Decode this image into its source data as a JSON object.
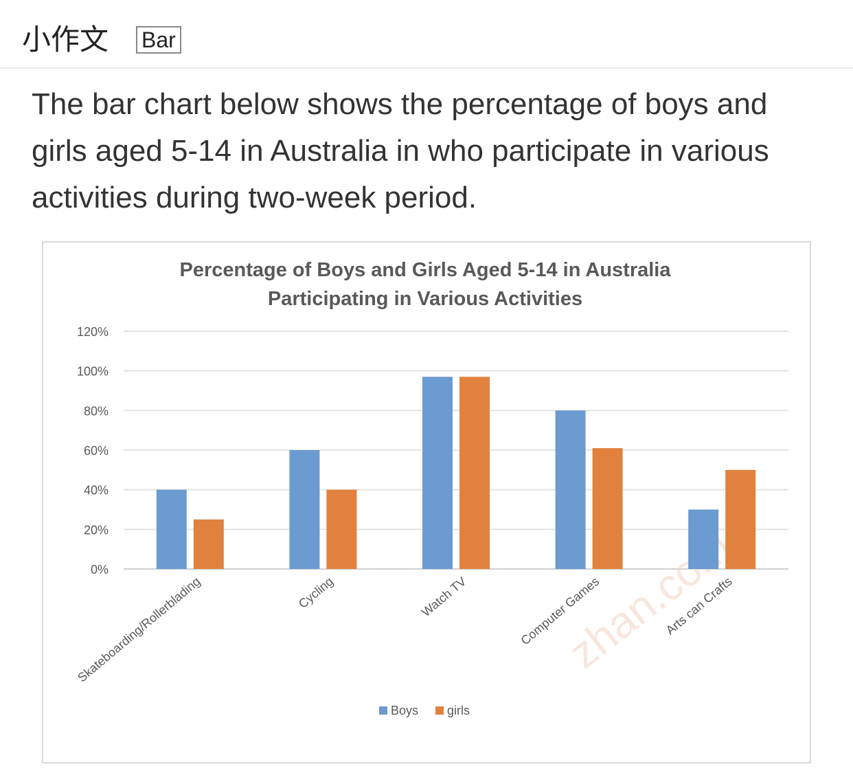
{
  "header": {
    "title": "小作文",
    "tag": "Bar"
  },
  "prompt": "The bar chart below shows the percentage of boys and girls aged 5-14 in Australia in who participate in various activities during two-week period.",
  "chart_data": {
    "type": "bar",
    "title_line1": "Percentage of Boys and Girls Aged 5-14 in Australia",
    "title_line2": "Participating in Various Activities",
    "categories": [
      "Skateboarding/Rollerblading",
      "Cycling",
      "Watch TV",
      "Computer Games",
      "Arts can Crafts"
    ],
    "series": [
      {
        "name": "Boys",
        "values": [
          40,
          60,
          97,
          80,
          30
        ],
        "color": "#6b9bd1"
      },
      {
        "name": "girls",
        "values": [
          25,
          40,
          97,
          61,
          50
        ],
        "color": "#e0823e"
      }
    ],
    "yticks": [
      "0%",
      "20%",
      "40%",
      "60%",
      "80%",
      "100%",
      "120%"
    ],
    "ylim": [
      0,
      120
    ],
    "grid": true,
    "legend_position": "bottom",
    "watermark": "zhan.com"
  }
}
